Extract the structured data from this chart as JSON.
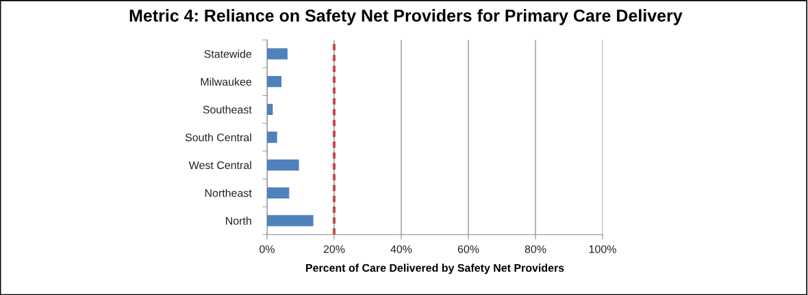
{
  "chart_data": {
    "type": "bar",
    "orientation": "horizontal",
    "title": "Metric 4: Reliance on Safety Net Providers for Primary Care Delivery",
    "xlabel": "Percent of Care Delivered by Safety Net Providers",
    "categories": [
      "Statewide",
      "Milwaukee",
      "Southeast",
      "South Central",
      "West Central",
      "Northeast",
      "North"
    ],
    "values": [
      6.1,
      4.3,
      1.7,
      3.0,
      9.5,
      6.6,
      13.8
    ],
    "color": "#4f81bd",
    "xlim": [
      0,
      100
    ],
    "xticks": [
      {
        "value": 0,
        "label": "0%"
      },
      {
        "value": 20,
        "label": "20%"
      },
      {
        "value": 40,
        "label": "40%"
      },
      {
        "value": 60,
        "label": "60%"
      },
      {
        "value": 80,
        "label": "80%"
      },
      {
        "value": 100,
        "label": "100%"
      }
    ],
    "grid": "x",
    "ref_lines": [
      {
        "axis": "x",
        "value": 20,
        "color": "#c0504d",
        "line_style": "dashed"
      }
    ]
  }
}
